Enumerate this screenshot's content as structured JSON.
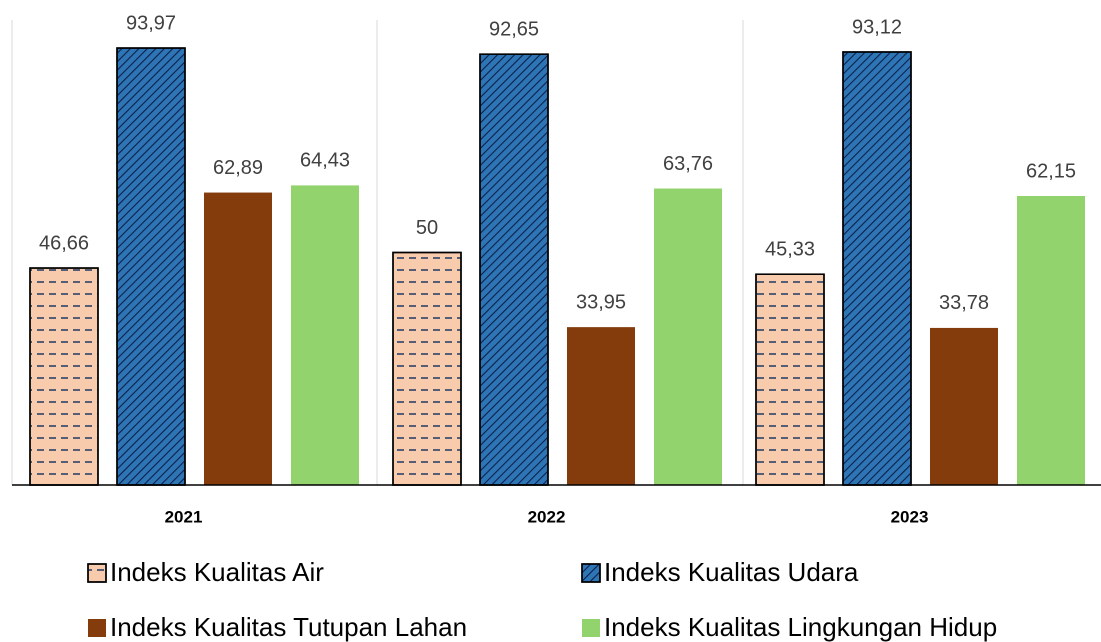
{
  "chart_data": {
    "type": "bar",
    "categories": [
      "2021",
      "2022",
      "2023"
    ],
    "series": [
      {
        "name": "Indeks Kualitas Air",
        "color": "#f8cbad",
        "hatch": "dash",
        "values": [
          46.66,
          50,
          45.33
        ],
        "value_labels": [
          "46,66",
          "50",
          "45,33"
        ]
      },
      {
        "name": "Indeks Kualitas Udara",
        "color": "#2e75b6",
        "hatch": "diagonal",
        "values": [
          93.97,
          92.65,
          93.12
        ],
        "value_labels": [
          "93,97",
          "92,65",
          "93,12"
        ]
      },
      {
        "name": "Indeks Kualitas Tutupan Lahan",
        "color": "#843c0c",
        "values": [
          62.89,
          33.95,
          33.78
        ],
        "value_labels": [
          "62,89",
          "33,95",
          "33,78"
        ]
      },
      {
        "name": "Indeks Kualitas Lingkungan Hidup",
        "color": "#92d36e",
        "values": [
          64.43,
          63.76,
          62.15
        ],
        "value_labels": [
          "64,43",
          "63,76",
          "62,15"
        ]
      }
    ],
    "ylim": [
      0,
      100
    ]
  }
}
